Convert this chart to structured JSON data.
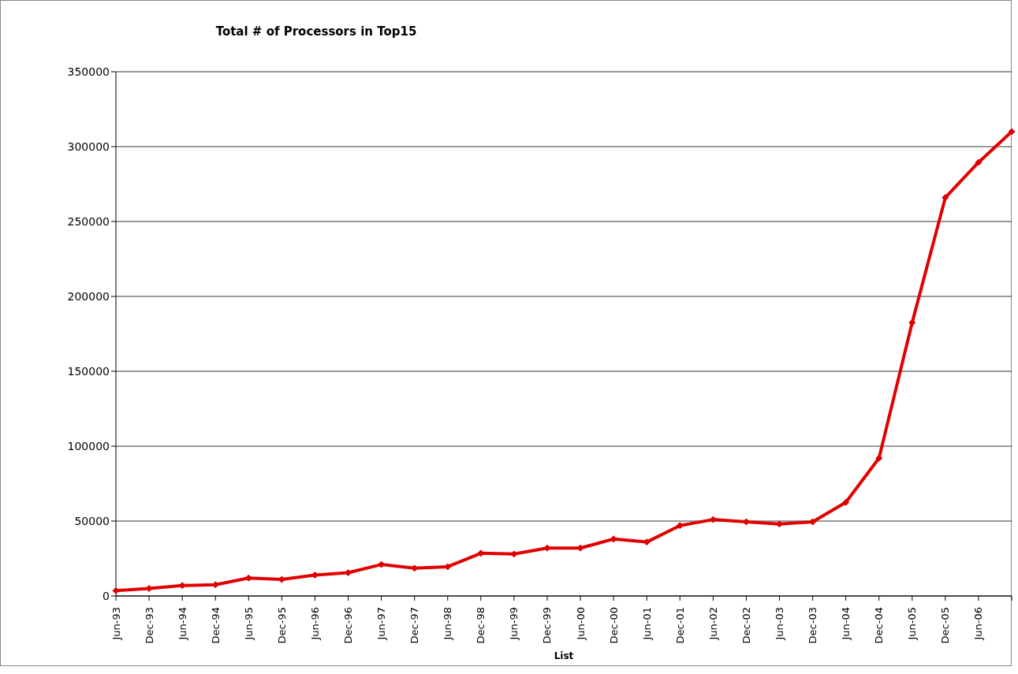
{
  "chart_data": {
    "type": "line",
    "title": "Total # of Processors in Top15",
    "xlabel": "List",
    "categories": [
      "Jun-93",
      "Dec-93",
      "Jun-94",
      "Dec-94",
      "Jun-95",
      "Dec-95",
      "Jun-96",
      "Dec-96",
      "Jun-97",
      "Dec-97",
      "Jun-98",
      "Dec-98",
      "Jun-99",
      "Dec-99",
      "Jun-00",
      "Dec-00",
      "Jun-01",
      "Dec-01",
      "Jun-02",
      "Dec-02",
      "Jun-03",
      "Dec-03",
      "Jun-04",
      "Dec-04",
      "Jun-05",
      "Dec-05",
      "Jun-06",
      null
    ],
    "series": [
      {
        "color": "#e00000",
        "values": [
          3500,
          5000,
          7000,
          7500,
          12000,
          11000,
          14000,
          15500,
          21000,
          18500,
          19500,
          28500,
          28000,
          32000,
          32000,
          38000,
          36000,
          47000,
          51000,
          49500,
          48000,
          49500,
          62500,
          92000,
          182500,
          266000,
          289500,
          310000
        ]
      }
    ],
    "ylim": [
      0,
      350000
    ],
    "yticks": [
      0,
      50000,
      100000,
      150000,
      200000,
      250000,
      300000,
      350000
    ],
    "grid": "y",
    "legend": false,
    "marker": "diamond",
    "line_style": "solid"
  }
}
